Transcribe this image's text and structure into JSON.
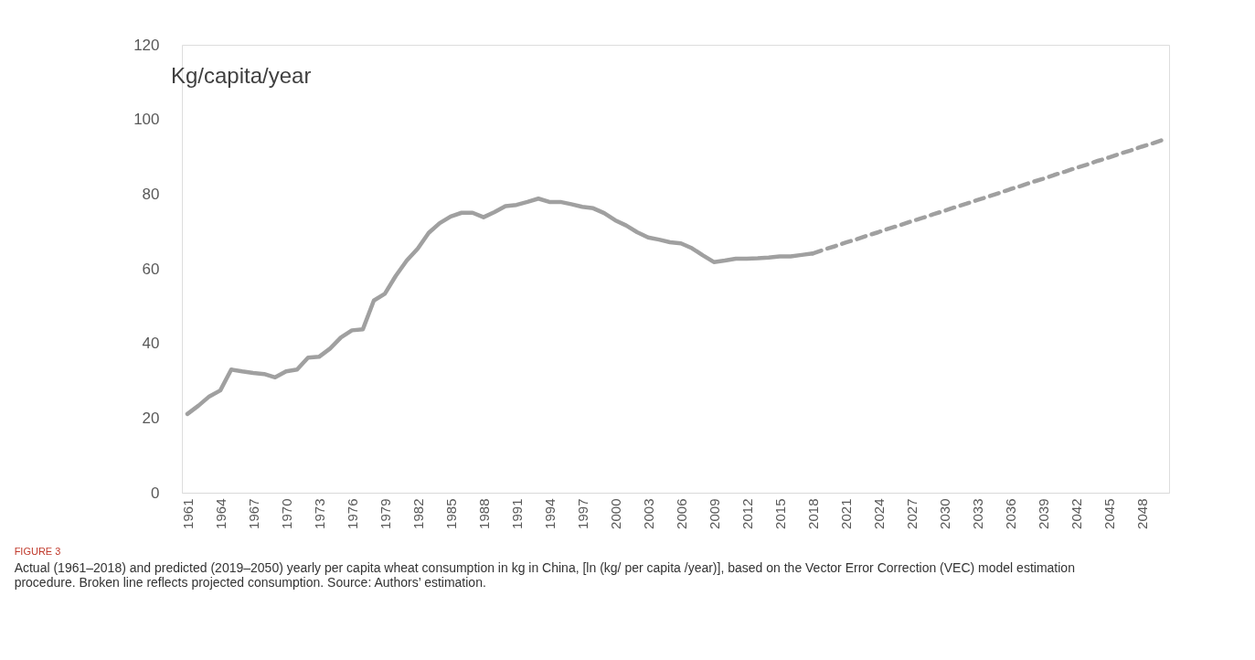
{
  "chart_data": {
    "type": "line",
    "ylabel": "Kg/capita/year",
    "categories": [
      "1961",
      null,
      null,
      "1964",
      null,
      null,
      "1967",
      null,
      null,
      "1970",
      null,
      null,
      "1973",
      null,
      null,
      "1976",
      null,
      null,
      "1979",
      null,
      null,
      "1982",
      null,
      null,
      "1985",
      null,
      null,
      "1988",
      null,
      null,
      "1991",
      null,
      null,
      "1994",
      null,
      null,
      "1997",
      null,
      null,
      "2000",
      null,
      null,
      "2003",
      null,
      null,
      "2006",
      null,
      null,
      "2009",
      null,
      null,
      "2012",
      null,
      null,
      "2015",
      null,
      null,
      "2018",
      null,
      null,
      "2021",
      null,
      null,
      "2024",
      null,
      null,
      "2027",
      null,
      null,
      "2030",
      null,
      null,
      "2033",
      null,
      null,
      "2036",
      null,
      null,
      "2039",
      null,
      null,
      "2042",
      null,
      null,
      "2045",
      null,
      null,
      "2048",
      null,
      null
    ],
    "series": [
      {
        "color": "#a0a0a0",
        "line_style": "solid",
        "values": [
          21.1,
          23.3,
          25.8,
          27.4,
          33.0,
          32.5,
          32.1,
          31.8,
          30.9,
          32.5,
          33.0,
          36.2,
          36.4,
          38.6,
          41.6,
          43.5,
          43.8,
          51.5,
          53.3,
          58.1,
          62.2,
          65.4,
          69.6,
          72.2,
          74.0,
          75.0,
          75.0,
          73.8,
          75.2,
          76.8,
          77.1,
          77.9,
          78.8,
          77.9,
          77.9,
          77.3,
          76.6,
          76.2,
          74.9,
          73.0,
          71.6,
          69.8,
          68.4,
          67.8,
          67.1,
          66.8,
          65.5,
          63.6,
          61.8,
          62.2,
          62.7,
          62.7,
          62.8,
          63.0,
          63.3,
          63.3,
          63.7,
          64.1,
          null,
          null,
          null,
          null,
          null,
          null,
          null,
          null,
          null,
          null,
          null,
          null,
          null,
          null,
          null,
          null,
          null,
          null,
          null,
          null,
          null,
          null,
          null,
          null,
          null,
          null,
          null,
          null,
          null,
          null,
          null,
          null
        ]
      },
      {
        "color": "#a0a0a0",
        "line_style": "dashed",
        "values": [
          null,
          null,
          null,
          null,
          null,
          null,
          null,
          null,
          null,
          null,
          null,
          null,
          null,
          null,
          null,
          null,
          null,
          null,
          null,
          null,
          null,
          null,
          null,
          null,
          null,
          null,
          null,
          null,
          null,
          null,
          null,
          null,
          null,
          null,
          null,
          null,
          null,
          null,
          null,
          null,
          null,
          null,
          null,
          null,
          null,
          null,
          null,
          null,
          null,
          null,
          null,
          null,
          null,
          null,
          null,
          null,
          null,
          64.1,
          65.1,
          66.0,
          67.0,
          67.9,
          68.9,
          69.8,
          70.8,
          71.7,
          72.7,
          73.6,
          74.6,
          75.5,
          76.5,
          77.4,
          78.4,
          79.3,
          80.3,
          81.3,
          82.2,
          83.2,
          84.1,
          85.1,
          86.0,
          87.0,
          87.9,
          88.9,
          89.8,
          90.8,
          91.7,
          92.7,
          93.6,
          94.6
        ]
      }
    ],
    "ylim": [
      0,
      120
    ],
    "yticks": [
      0,
      20,
      40,
      60,
      80,
      100,
      120
    ],
    "grid": false,
    "legend": false,
    "marker": "none",
    "annotations": [
      "FIGURE 3",
      "Actual (1961–2018) and predicted (2019–2050) yearly per capita wheat consumption in kg in China, [ln (kg/ per capita /year)], based on the Vector Error Correction (VEC) model estimation procedure. Broken line reflects projected consumption. Source: Authors’ estimation."
    ]
  }
}
